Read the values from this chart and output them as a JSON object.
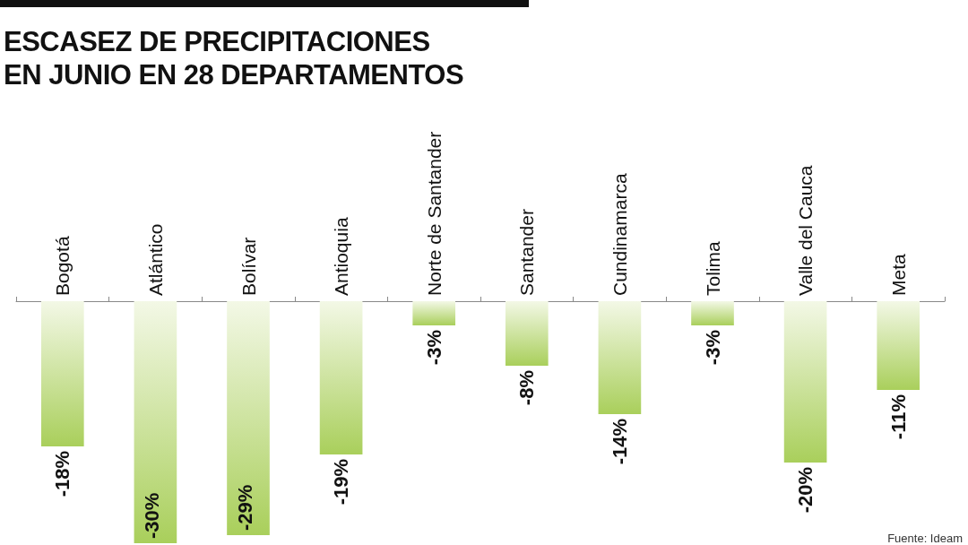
{
  "chart_data": {
    "type": "bar",
    "title": "ESCASEZ DE PRECIPITACIONES EN JUNIO EN 28 DEPARTAMENTOS",
    "categories": [
      "Bogotá",
      "Atlántico",
      "Bolívar",
      "Antioquia",
      "Norte de Santander",
      "Santander",
      "Cundinamarca",
      "Tolima",
      "Valle del Cauca",
      "Meta"
    ],
    "values": [
      -18,
      -30,
      -29,
      -19,
      -3,
      -8,
      -14,
      -3,
      -20,
      -11
    ],
    "value_labels": [
      "-18%",
      "-30%",
      "-29%",
      "-19%",
      "-3%",
      "-8%",
      "-14%",
      "-3%",
      "-20%",
      "-11%"
    ],
    "color": "#a9cf5b",
    "annotations": [
      "Fuente: Ideam"
    ]
  }
}
